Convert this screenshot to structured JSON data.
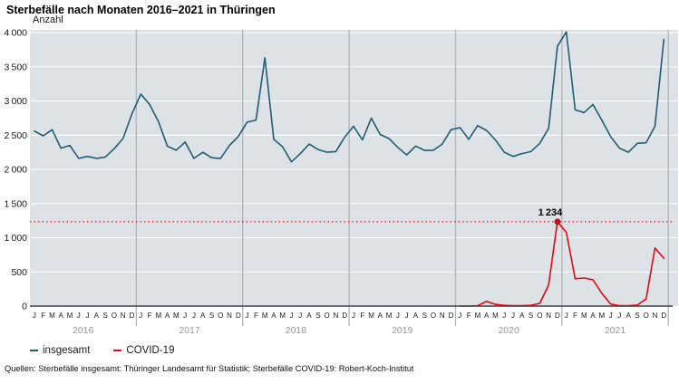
{
  "title": "Sterbefälle nach Monaten 2016–2021 in Thüringen",
  "y_axis_label": "Anzahl",
  "legend": [
    {
      "label": "insgesamt",
      "color": "#235c72"
    },
    {
      "label": "COVID-19",
      "color": "#e30613"
    }
  ],
  "sources": "Quellen: Sterbefälle insgesamt: Thüringer Landesamt für Statistik; Sterbefälle COVID-19: Robert-Koch-Institut",
  "colors": {
    "plot_background": "#dce2e5",
    "gridline": "#ffffff",
    "year_separator": "#aeb5b9",
    "axis": "#3a3f42",
    "month_label": "#1a1a1a",
    "year_label": "#94999c",
    "total_line": "#235c72",
    "covid_line": "#e30613",
    "reference_dotted": "#e30613",
    "marker_dot": "#b5121b"
  },
  "chart_data": {
    "type": "line",
    "title": "Sterbefälle nach Monaten 2016–2021 in Thüringen",
    "xlabel": "",
    "ylabel": "Anzahl",
    "ylim": [
      0,
      4000
    ],
    "y_tick_values": [
      0,
      500,
      1000,
      1500,
      2000,
      2500,
      3000,
      3500,
      4000
    ],
    "y_tick_labels": [
      "0",
      "500",
      "1 000",
      "1 500",
      "2 000",
      "2 500",
      "3 000",
      "3 500",
      "4 000"
    ],
    "month_letters": [
      "J",
      "F",
      "M",
      "A",
      "M",
      "J",
      "J",
      "A",
      "S",
      "O",
      "N",
      "D"
    ],
    "years": [
      "2016",
      "2017",
      "2018",
      "2019",
      "2020",
      "2021"
    ],
    "grid": "horizontal white gridlines every 500; gray vertical separators at year boundaries",
    "legend_position": "bottom-left",
    "annotation": {
      "label": "1 234",
      "value": 1234,
      "series": "COVID-19",
      "month": "Dezember 2020"
    },
    "reference_line": {
      "value": 1234,
      "style": "dotted",
      "color": "#e30613"
    },
    "series": [
      {
        "name": "insgesamt",
        "color": "#235c72",
        "start": "2016-01",
        "offset_months": 0,
        "values": [
          2560,
          2490,
          2580,
          2310,
          2350,
          2160,
          2190,
          2160,
          2180,
          2300,
          2450,
          2810,
          3100,
          2950,
          2700,
          2340,
          2280,
          2400,
          2160,
          2250,
          2170,
          2160,
          2350,
          2480,
          2690,
          2720,
          3630,
          2440,
          2330,
          2110,
          2230,
          2370,
          2290,
          2250,
          2260,
          2470,
          2630,
          2430,
          2750,
          2510,
          2450,
          2320,
          2210,
          2340,
          2280,
          2280,
          2370,
          2580,
          2610,
          2440,
          2640,
          2570,
          2430,
          2250,
          2190,
          2230,
          2260,
          2380,
          2600,
          3800,
          4010,
          2870,
          2830,
          2950,
          2720,
          2480,
          2310,
          2250,
          2380,
          2390,
          2630,
          3900
        ]
      },
      {
        "name": "COVID-19",
        "color": "#e30613",
        "start": "2020-01",
        "offset_months": 48,
        "values": [
          0,
          0,
          5,
          70,
          25,
          10,
          5,
          5,
          10,
          40,
          310,
          1234,
          1080,
          400,
          410,
          385,
          190,
          30,
          5,
          5,
          15,
          105,
          850,
          700
        ]
      }
    ]
  }
}
